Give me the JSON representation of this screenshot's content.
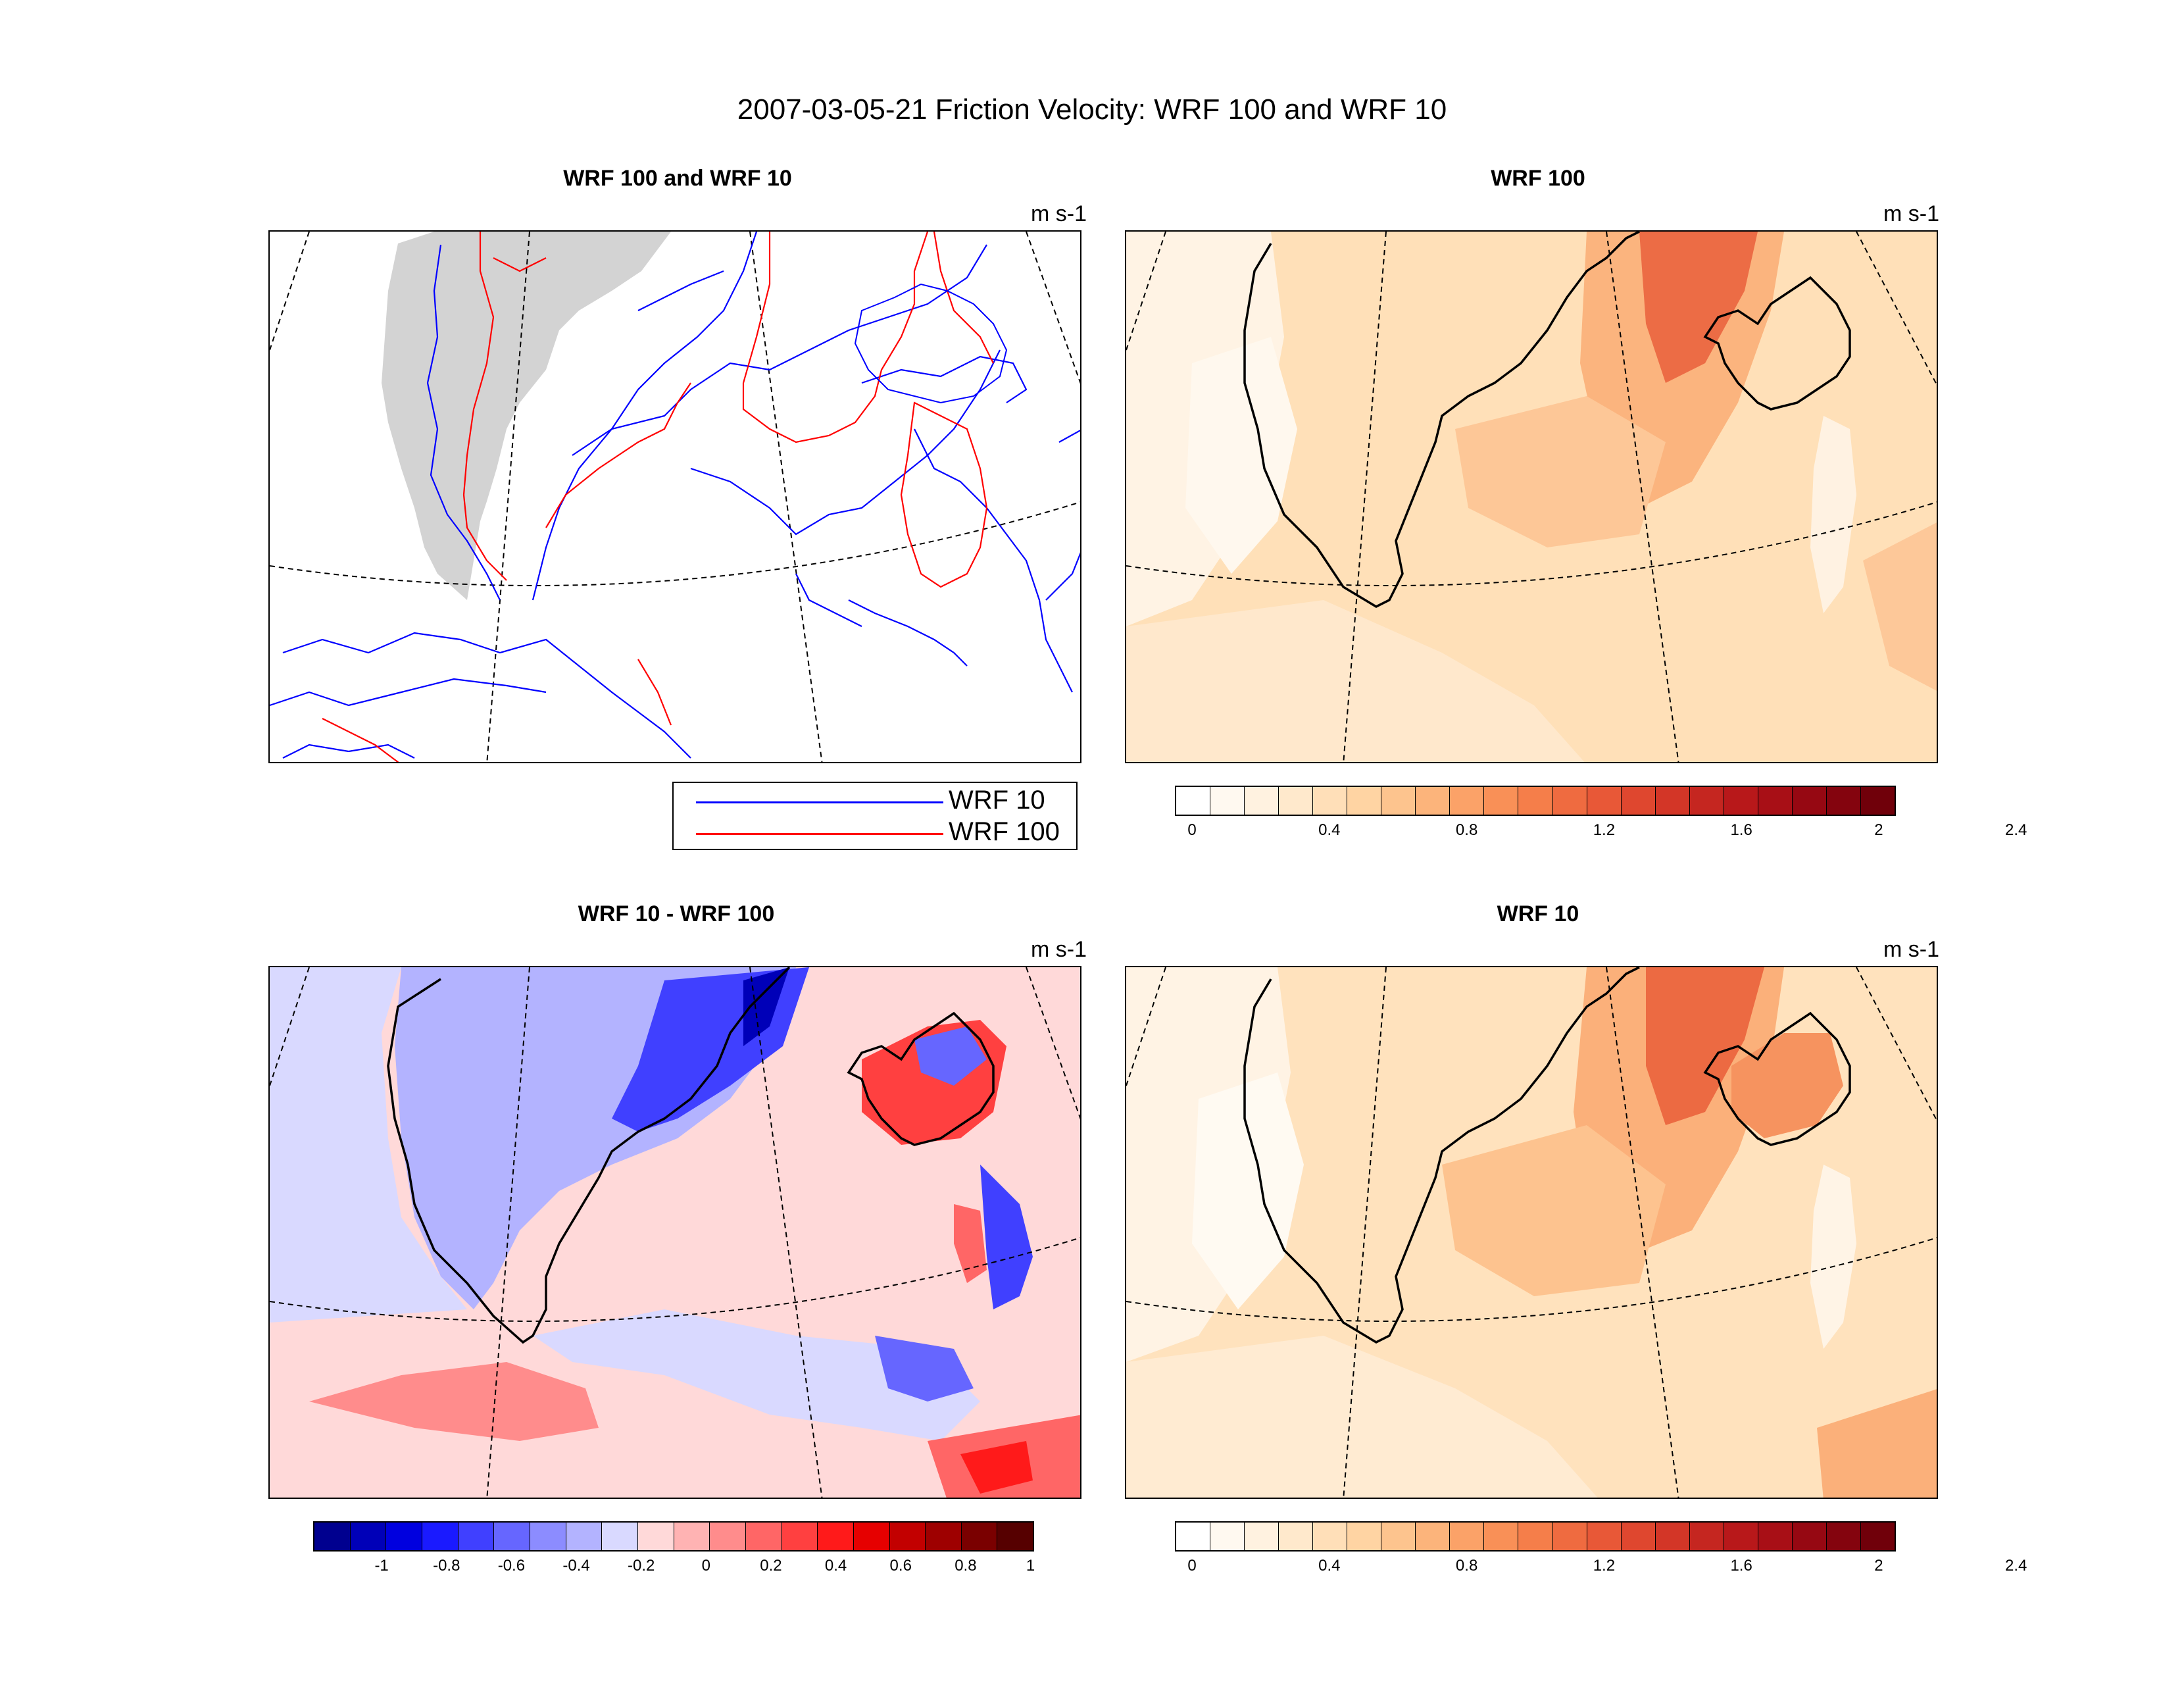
{
  "figure": {
    "title": "2007-03-05-21 Friction Velocity: WRF 100 and WRF 10"
  },
  "panels": {
    "top_left": {
      "title": "WRF 100 and WRF 10",
      "units": "m s-1"
    },
    "top_right": {
      "title": "WRF 100",
      "units": "m s-1"
    },
    "bottom_left": {
      "title": "WRF 10 - WRF 100",
      "units": "m s-1"
    },
    "bottom_right": {
      "title": "WRF 10",
      "units": "m s-1"
    }
  },
  "legend": {
    "items": [
      {
        "label": "WRF 10",
        "color": "#0000ff"
      },
      {
        "label": "WRF 100",
        "color": "#ff0000"
      }
    ]
  },
  "colorbars": {
    "ustar": {
      "colors": [
        "#ffffff",
        "#fff9f0",
        "#fff2e0",
        "#ffe9cc",
        "#ffdfb8",
        "#ffd4a3",
        "#fdc48e",
        "#fcb47b",
        "#fba268",
        "#f99057",
        "#f57e4a",
        "#ef6b40",
        "#e85837",
        "#df472f",
        "#d33627",
        "#c52620",
        "#b8181a",
        "#a80f16",
        "#960812",
        "#84040e",
        "#70000a"
      ],
      "tick_labels": [
        "0",
        "0.4",
        "0.8",
        "1.2",
        "1.6",
        "2",
        "2.4"
      ]
    },
    "difference": {
      "colors": [
        "#00008f",
        "#0000b8",
        "#0000df",
        "#1a1aff",
        "#4040ff",
        "#6666ff",
        "#8c8cff",
        "#b3b3ff",
        "#d9d9ff",
        "#ffd9d9",
        "#ffb3b3",
        "#ff8c8c",
        "#ff6666",
        "#ff4040",
        "#ff1a1a",
        "#e60000",
        "#c20000",
        "#9e0000",
        "#7a0000",
        "#560000"
      ],
      "tick_labels": [
        "-1",
        "-0.8",
        "-0.6",
        "-0.4",
        "-0.2",
        "0",
        "0.2",
        "0.4",
        "0.6",
        "0.8",
        "1"
      ]
    }
  },
  "colors": {
    "land_fill": "#d3d3d3",
    "coast": "#000000",
    "wrf10_contour": "#0000ff",
    "wrf100_contour": "#ff0000"
  }
}
